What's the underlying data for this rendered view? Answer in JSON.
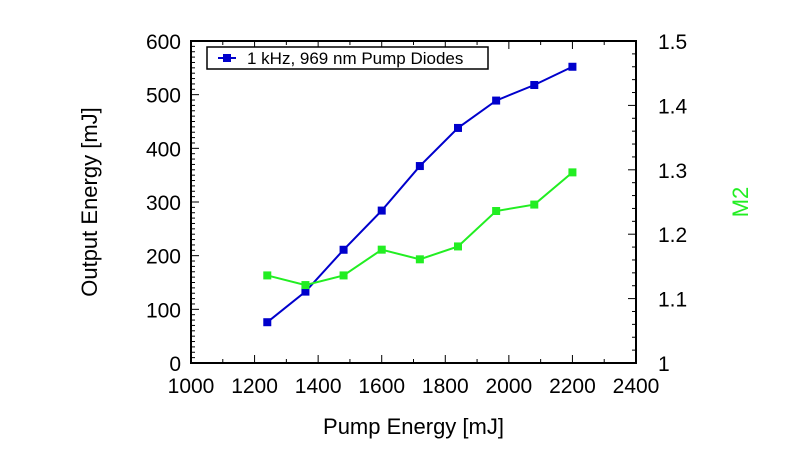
{
  "chart_data": {
    "type": "line",
    "title": "",
    "xlabel": "Pump Energy [mJ]",
    "ylabel": "Output Energy [mJ]",
    "y2label": "M2",
    "xlim": [
      1000,
      2400
    ],
    "ylim": [
      0,
      600
    ],
    "y2lim": [
      1,
      1.5
    ],
    "xticks": [
      1000,
      1200,
      1400,
      1600,
      1800,
      2000,
      2200,
      2400
    ],
    "yticks": [
      0,
      100,
      200,
      300,
      400,
      500,
      600
    ],
    "y2ticks": [
      "1",
      "1.1",
      "1.2",
      "1.3",
      "1.4",
      "1.5"
    ],
    "grid": false,
    "legend_position": "top-left",
    "x": [
      1240,
      1360,
      1480,
      1600,
      1720,
      1840,
      1960,
      2080,
      2200
    ],
    "series": [
      {
        "name": "1 kHz, 969 nm Pump Diodes",
        "axis": "left",
        "color": "#0000cc",
        "marker": "square",
        "in_legend": true,
        "values": [
          76,
          133,
          211,
          284,
          367,
          438,
          489,
          518,
          552
        ]
      },
      {
        "name": "M2",
        "axis": "right",
        "color": "#22ee22",
        "marker": "square",
        "in_legend": false,
        "values": [
          1.136,
          1.121,
          1.136,
          1.176,
          1.161,
          1.181,
          1.236,
          1.246,
          1.296
        ]
      }
    ]
  }
}
